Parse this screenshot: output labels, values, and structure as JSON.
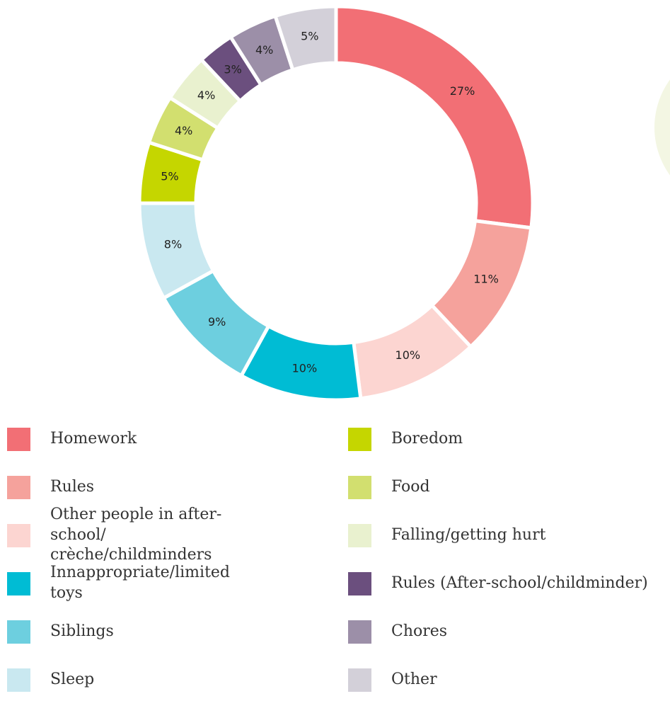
{
  "chart_data": {
    "type": "pie",
    "donut": true,
    "categories": [
      "Homework",
      "Rules",
      "Other people in after-school/ crèche/childminders",
      "Innappropriate/limited toys",
      "Siblings",
      "Sleep",
      "Boredom",
      "Food",
      "Falling/getting hurt",
      "Rules (After-school/childminder)",
      "Chores",
      "Other"
    ],
    "values": [
      27,
      11,
      10,
      10,
      9,
      8,
      5,
      4,
      4,
      3,
      4,
      5
    ],
    "value_labels": [
      "27%",
      "11%",
      "10%",
      "10%",
      "9%",
      "8%",
      "5%",
      "4%",
      "4%",
      "3%",
      "4%",
      "5%"
    ],
    "colors": [
      "#f26f75",
      "#f5a29c",
      "#fcd5d1",
      "#00bcd4",
      "#6dcfdf",
      "#c9e8f0",
      "#c5d600",
      "#d2df6f",
      "#e9f1cf",
      "#6b4f7e",
      "#9c8fa8",
      "#d3d0d9"
    ],
    "legend": "bottom"
  }
}
